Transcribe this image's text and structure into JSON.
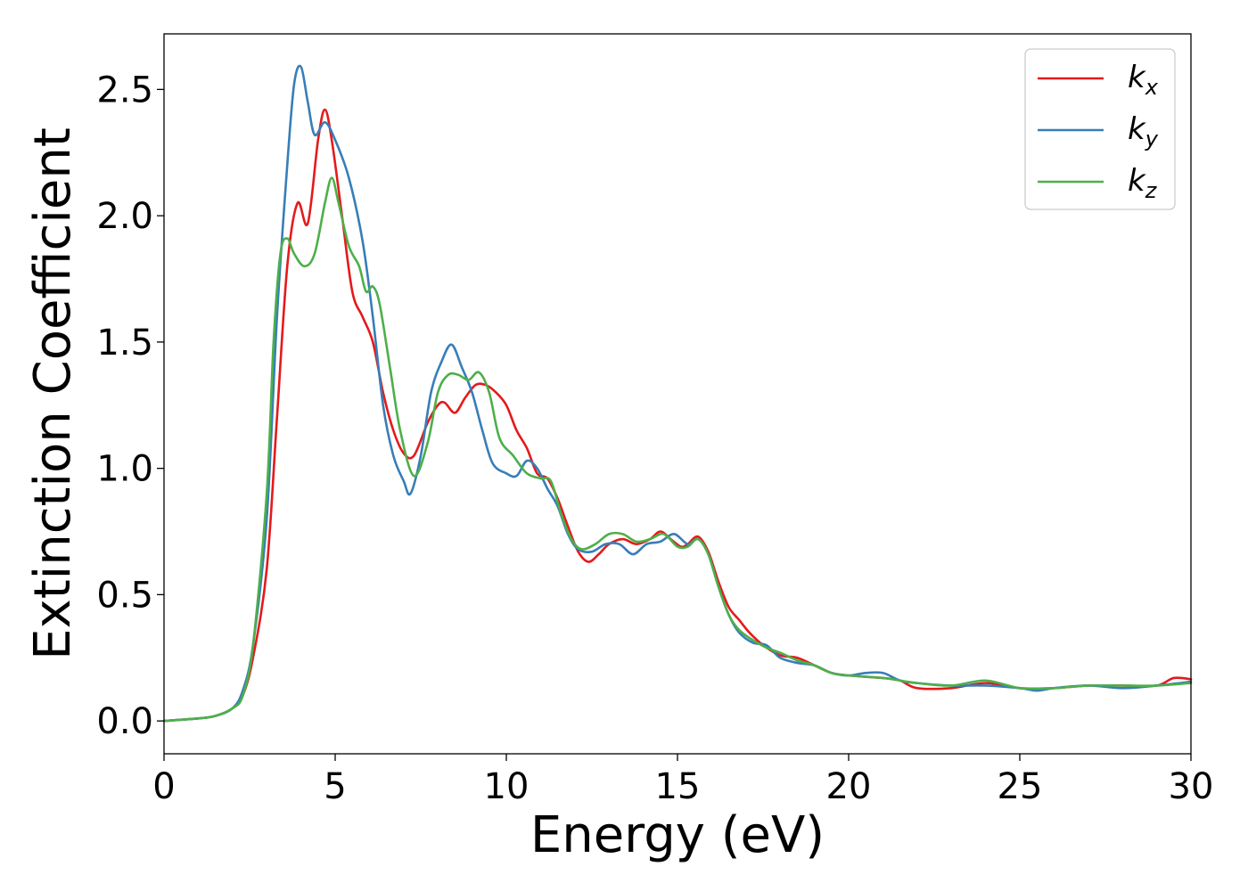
{
  "chart_data": {
    "type": "line",
    "title": "",
    "xlabel": "Energy (eV)",
    "ylabel": "Extinction Coefficient",
    "xlim": [
      0,
      30
    ],
    "ylim": [
      -0.13,
      2.72
    ],
    "xticks": [
      0,
      5,
      10,
      15,
      20,
      25,
      30
    ],
    "yticks": [
      0.0,
      0.5,
      1.0,
      1.5,
      2.0,
      2.5
    ],
    "xtick_labels": [
      "0",
      "5",
      "10",
      "15",
      "20",
      "25",
      "30"
    ],
    "ytick_labels": [
      "0.0",
      "0.5",
      "1.0",
      "1.5",
      "2.0",
      "2.5"
    ],
    "grid": false,
    "legend_position": "top-right",
    "series": [
      {
        "name": "kx",
        "label_base": "k",
        "label_sub": "x",
        "color": "#e41a1c",
        "points": [
          [
            0,
            0
          ],
          [
            1,
            0.01
          ],
          [
            1.5,
            0.02
          ],
          [
            2,
            0.05
          ],
          [
            2.3,
            0.1
          ],
          [
            2.6,
            0.25
          ],
          [
            3,
            0.6
          ],
          [
            3.3,
            1.2
          ],
          [
            3.6,
            1.8
          ],
          [
            3.9,
            2.05
          ],
          [
            4.2,
            1.97
          ],
          [
            4.5,
            2.3
          ],
          [
            4.7,
            2.42
          ],
          [
            4.9,
            2.3
          ],
          [
            5.2,
            2.0
          ],
          [
            5.5,
            1.7
          ],
          [
            5.8,
            1.6
          ],
          [
            6.1,
            1.5
          ],
          [
            6.4,
            1.3
          ],
          [
            6.7,
            1.15
          ],
          [
            7,
            1.06
          ],
          [
            7.3,
            1.05
          ],
          [
            7.7,
            1.18
          ],
          [
            8.0,
            1.25
          ],
          [
            8.2,
            1.26
          ],
          [
            8.5,
            1.22
          ],
          [
            8.8,
            1.28
          ],
          [
            9.1,
            1.33
          ],
          [
            9.4,
            1.33
          ],
          [
            9.7,
            1.3
          ],
          [
            10,
            1.25
          ],
          [
            10.3,
            1.15
          ],
          [
            10.6,
            1.08
          ],
          [
            10.9,
            0.98
          ],
          [
            11.2,
            0.96
          ],
          [
            11.5,
            0.88
          ],
          [
            11.8,
            0.77
          ],
          [
            12.1,
            0.67
          ],
          [
            12.4,
            0.63
          ],
          [
            12.7,
            0.66
          ],
          [
            13,
            0.7
          ],
          [
            13.4,
            0.72
          ],
          [
            13.8,
            0.7
          ],
          [
            14.2,
            0.72
          ],
          [
            14.5,
            0.75
          ],
          [
            14.8,
            0.72
          ],
          [
            15.1,
            0.69
          ],
          [
            15.3,
            0.7
          ],
          [
            15.6,
            0.73
          ],
          [
            15.9,
            0.67
          ],
          [
            16.2,
            0.55
          ],
          [
            16.5,
            0.45
          ],
          [
            16.8,
            0.4
          ],
          [
            17.1,
            0.35
          ],
          [
            17.5,
            0.3
          ],
          [
            18,
            0.26
          ],
          [
            18.5,
            0.25
          ],
          [
            19,
            0.22
          ],
          [
            19.5,
            0.19
          ],
          [
            20,
            0.18
          ],
          [
            21,
            0.17
          ],
          [
            21.5,
            0.16
          ],
          [
            22,
            0.13
          ],
          [
            23,
            0.13
          ],
          [
            24,
            0.15
          ],
          [
            25,
            0.13
          ],
          [
            26,
            0.13
          ],
          [
            27,
            0.14
          ],
          [
            28,
            0.14
          ],
          [
            29,
            0.14
          ],
          [
            29.5,
            0.17
          ],
          [
            30,
            0.165
          ]
        ]
      },
      {
        "name": "ky",
        "label_base": "k",
        "label_sub": "y",
        "color": "#377eb8",
        "points": [
          [
            0,
            0
          ],
          [
            1,
            0.01
          ],
          [
            1.5,
            0.02
          ],
          [
            2,
            0.05
          ],
          [
            2.3,
            0.12
          ],
          [
            2.6,
            0.3
          ],
          [
            3,
            0.8
          ],
          [
            3.3,
            1.6
          ],
          [
            3.6,
            2.2
          ],
          [
            3.8,
            2.52
          ],
          [
            4.0,
            2.59
          ],
          [
            4.2,
            2.45
          ],
          [
            4.4,
            2.32
          ],
          [
            4.7,
            2.37
          ],
          [
            5.0,
            2.3
          ],
          [
            5.4,
            2.15
          ],
          [
            5.8,
            1.9
          ],
          [
            6.1,
            1.6
          ],
          [
            6.4,
            1.25
          ],
          [
            6.7,
            1.05
          ],
          [
            7,
            0.95
          ],
          [
            7.2,
            0.9
          ],
          [
            7.5,
            1.05
          ],
          [
            7.8,
            1.3
          ],
          [
            8.1,
            1.42
          ],
          [
            8.4,
            1.49
          ],
          [
            8.7,
            1.4
          ],
          [
            9.0,
            1.3
          ],
          [
            9.3,
            1.15
          ],
          [
            9.6,
            1.02
          ],
          [
            10.0,
            0.98
          ],
          [
            10.3,
            0.97
          ],
          [
            10.6,
            1.03
          ],
          [
            10.9,
            1.0
          ],
          [
            11.2,
            0.92
          ],
          [
            11.5,
            0.85
          ],
          [
            11.8,
            0.74
          ],
          [
            12.1,
            0.68
          ],
          [
            12.5,
            0.67
          ],
          [
            12.9,
            0.7
          ],
          [
            13.3,
            0.7
          ],
          [
            13.7,
            0.66
          ],
          [
            14.1,
            0.7
          ],
          [
            14.5,
            0.71
          ],
          [
            14.9,
            0.74
          ],
          [
            15.3,
            0.7
          ],
          [
            15.6,
            0.72
          ],
          [
            15.9,
            0.66
          ],
          [
            16.2,
            0.53
          ],
          [
            16.5,
            0.42
          ],
          [
            16.8,
            0.35
          ],
          [
            17.2,
            0.31
          ],
          [
            17.6,
            0.3
          ],
          [
            18,
            0.25
          ],
          [
            18.5,
            0.23
          ],
          [
            19,
            0.22
          ],
          [
            19.5,
            0.19
          ],
          [
            20,
            0.18
          ],
          [
            20.5,
            0.19
          ],
          [
            21,
            0.19
          ],
          [
            21.5,
            0.16
          ],
          [
            22,
            0.15
          ],
          [
            23,
            0.14
          ],
          [
            24,
            0.14
          ],
          [
            25,
            0.13
          ],
          [
            25.5,
            0.12
          ],
          [
            26,
            0.13
          ],
          [
            27,
            0.14
          ],
          [
            28,
            0.13
          ],
          [
            29,
            0.14
          ],
          [
            30,
            0.155
          ]
        ]
      },
      {
        "name": "kz",
        "label_base": "k",
        "label_sub": "z",
        "color": "#4daf4a",
        "points": [
          [
            0,
            0
          ],
          [
            1,
            0.01
          ],
          [
            1.5,
            0.02
          ],
          [
            2,
            0.05
          ],
          [
            2.3,
            0.1
          ],
          [
            2.6,
            0.3
          ],
          [
            3,
            0.9
          ],
          [
            3.2,
            1.5
          ],
          [
            3.4,
            1.85
          ],
          [
            3.6,
            1.91
          ],
          [
            3.8,
            1.85
          ],
          [
            4.1,
            1.8
          ],
          [
            4.4,
            1.85
          ],
          [
            4.7,
            2.05
          ],
          [
            4.9,
            2.15
          ],
          [
            5.1,
            2.05
          ],
          [
            5.4,
            1.88
          ],
          [
            5.7,
            1.8
          ],
          [
            5.9,
            1.7
          ],
          [
            6.1,
            1.72
          ],
          [
            6.3,
            1.65
          ],
          [
            6.6,
            1.4
          ],
          [
            6.9,
            1.15
          ],
          [
            7.3,
            0.97
          ],
          [
            7.7,
            1.1
          ],
          [
            8.0,
            1.3
          ],
          [
            8.3,
            1.37
          ],
          [
            8.6,
            1.37
          ],
          [
            8.9,
            1.35
          ],
          [
            9.2,
            1.38
          ],
          [
            9.5,
            1.3
          ],
          [
            9.8,
            1.12
          ],
          [
            10.2,
            1.05
          ],
          [
            10.6,
            0.98
          ],
          [
            11.0,
            0.96
          ],
          [
            11.3,
            0.95
          ],
          [
            11.6,
            0.82
          ],
          [
            11.9,
            0.72
          ],
          [
            12.2,
            0.68
          ],
          [
            12.6,
            0.7
          ],
          [
            13.0,
            0.74
          ],
          [
            13.4,
            0.74
          ],
          [
            13.8,
            0.71
          ],
          [
            14.2,
            0.72
          ],
          [
            14.6,
            0.74
          ],
          [
            15.0,
            0.69
          ],
          [
            15.3,
            0.69
          ],
          [
            15.6,
            0.72
          ],
          [
            15.9,
            0.66
          ],
          [
            16.2,
            0.53
          ],
          [
            16.5,
            0.42
          ],
          [
            16.8,
            0.36
          ],
          [
            17.2,
            0.32
          ],
          [
            17.6,
            0.29
          ],
          [
            18,
            0.27
          ],
          [
            18.5,
            0.24
          ],
          [
            19,
            0.22
          ],
          [
            19.5,
            0.19
          ],
          [
            20,
            0.18
          ],
          [
            21,
            0.17
          ],
          [
            21.5,
            0.16
          ],
          [
            22,
            0.15
          ],
          [
            23,
            0.14
          ],
          [
            24,
            0.16
          ],
          [
            25,
            0.13
          ],
          [
            26,
            0.13
          ],
          [
            27,
            0.14
          ],
          [
            28,
            0.14
          ],
          [
            29,
            0.14
          ],
          [
            30,
            0.15
          ]
        ]
      }
    ]
  }
}
